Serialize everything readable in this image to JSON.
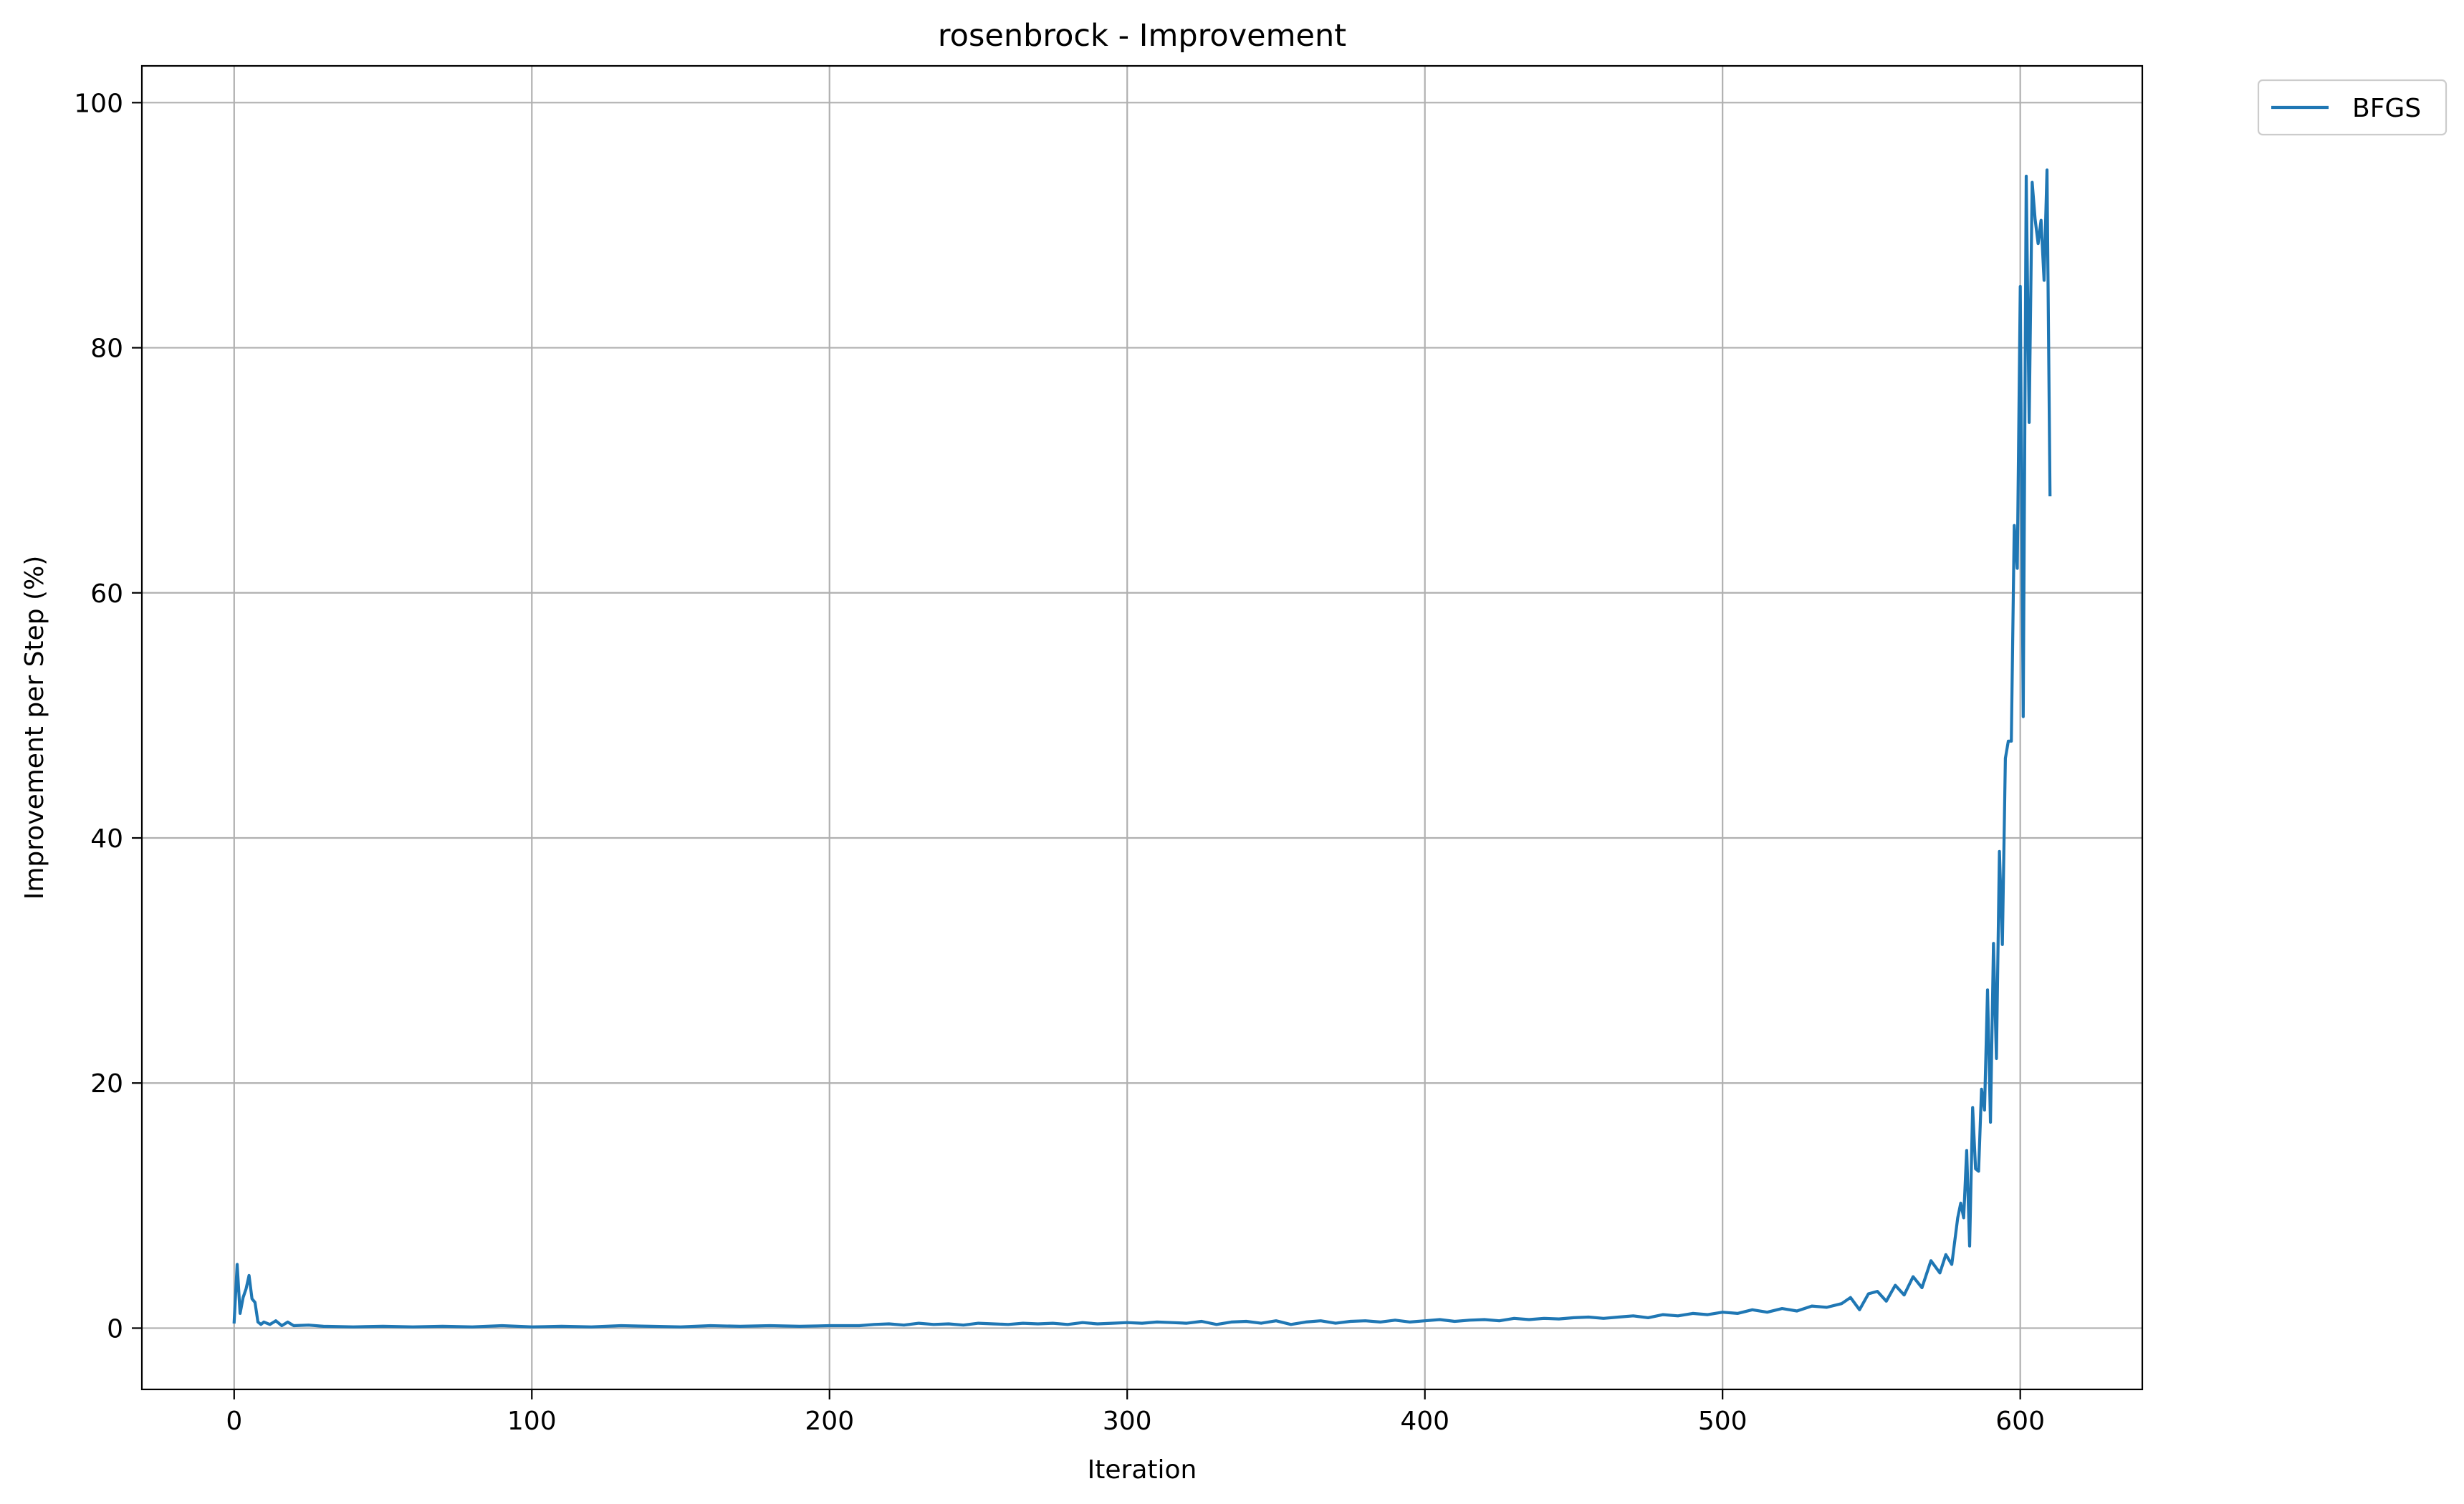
{
  "chart_data": {
    "type": "line",
    "title": "rosenbrock - Improvement",
    "xlabel": "Iteration",
    "ylabel": "Improvement per Step (%)",
    "xlim": [
      -31,
      641
    ],
    "ylim": [
      -5,
      103
    ],
    "xticks": [
      0,
      100,
      200,
      300,
      400,
      500,
      600
    ],
    "yticks": [
      0,
      20,
      40,
      60,
      80,
      100
    ],
    "grid": true,
    "legend_position": "outside upper right",
    "series": [
      {
        "name": "BFGS",
        "color": "#1f77b4",
        "x": [
          0,
          1,
          2,
          3,
          4,
          5,
          6,
          7,
          8,
          9,
          10,
          12,
          14,
          16,
          18,
          20,
          25,
          30,
          40,
          50,
          60,
          70,
          80,
          90,
          100,
          110,
          120,
          130,
          140,
          150,
          160,
          170,
          180,
          190,
          200,
          210,
          215,
          220,
          225,
          230,
          235,
          240,
          245,
          250,
          255,
          260,
          265,
          270,
          275,
          280,
          285,
          290,
          295,
          300,
          305,
          310,
          315,
          320,
          325,
          330,
          335,
          340,
          345,
          350,
          355,
          360,
          365,
          370,
          375,
          380,
          385,
          390,
          395,
          400,
          405,
          410,
          415,
          420,
          425,
          430,
          435,
          440,
          445,
          450,
          455,
          460,
          465,
          470,
          475,
          480,
          485,
          490,
          495,
          500,
          505,
          510,
          515,
          520,
          525,
          530,
          535,
          540,
          543,
          546,
          549,
          552,
          555,
          558,
          561,
          564,
          567,
          570,
          573,
          575,
          577,
          579,
          580,
          581,
          582,
          583,
          584,
          585,
          586,
          587,
          588,
          589,
          590,
          591,
          592,
          593,
          594,
          595,
          596,
          597,
          598,
          599,
          600,
          601,
          602,
          603,
          604,
          605,
          606,
          607,
          608,
          609,
          610
        ],
        "y": [
          0.5,
          5.2,
          1.2,
          2.5,
          3.2,
          4.3,
          2.4,
          2.1,
          0.5,
          0.3,
          0.5,
          0.3,
          0.6,
          0.2,
          0.5,
          0.2,
          0.25,
          0.15,
          0.1,
          0.15,
          0.1,
          0.15,
          0.1,
          0.2,
          0.1,
          0.15,
          0.1,
          0.2,
          0.15,
          0.1,
          0.2,
          0.15,
          0.2,
          0.15,
          0.2,
          0.2,
          0.3,
          0.35,
          0.25,
          0.4,
          0.3,
          0.35,
          0.25,
          0.4,
          0.35,
          0.3,
          0.4,
          0.35,
          0.4,
          0.3,
          0.45,
          0.35,
          0.4,
          0.45,
          0.4,
          0.5,
          0.45,
          0.4,
          0.55,
          0.3,
          0.5,
          0.55,
          0.4,
          0.6,
          0.3,
          0.5,
          0.6,
          0.4,
          0.55,
          0.6,
          0.5,
          0.65,
          0.5,
          0.6,
          0.7,
          0.55,
          0.65,
          0.7,
          0.6,
          0.8,
          0.7,
          0.8,
          0.75,
          0.85,
          0.9,
          0.8,
          0.9,
          1.0,
          0.85,
          1.1,
          1.0,
          1.2,
          1.1,
          1.3,
          1.2,
          1.5,
          1.3,
          1.6,
          1.4,
          1.8,
          1.7,
          2.0,
          2.5,
          1.5,
          2.8,
          3.0,
          2.2,
          3.5,
          2.7,
          4.2,
          3.3,
          5.5,
          4.5,
          6.0,
          5.2,
          9.0,
          10.2,
          9.0,
          14.5,
          6.7,
          18.0,
          13.0,
          12.8,
          19.5,
          17.8,
          27.6,
          16.8,
          31.4,
          22.0,
          38.9,
          31.3,
          46.5,
          47.9,
          47.9,
          65.5,
          62.0,
          85.0,
          49.9,
          94.0,
          73.9,
          93.5,
          90.5,
          88.5,
          90.4,
          85.5,
          94.5,
          68.0
        ]
      }
    ]
  }
}
